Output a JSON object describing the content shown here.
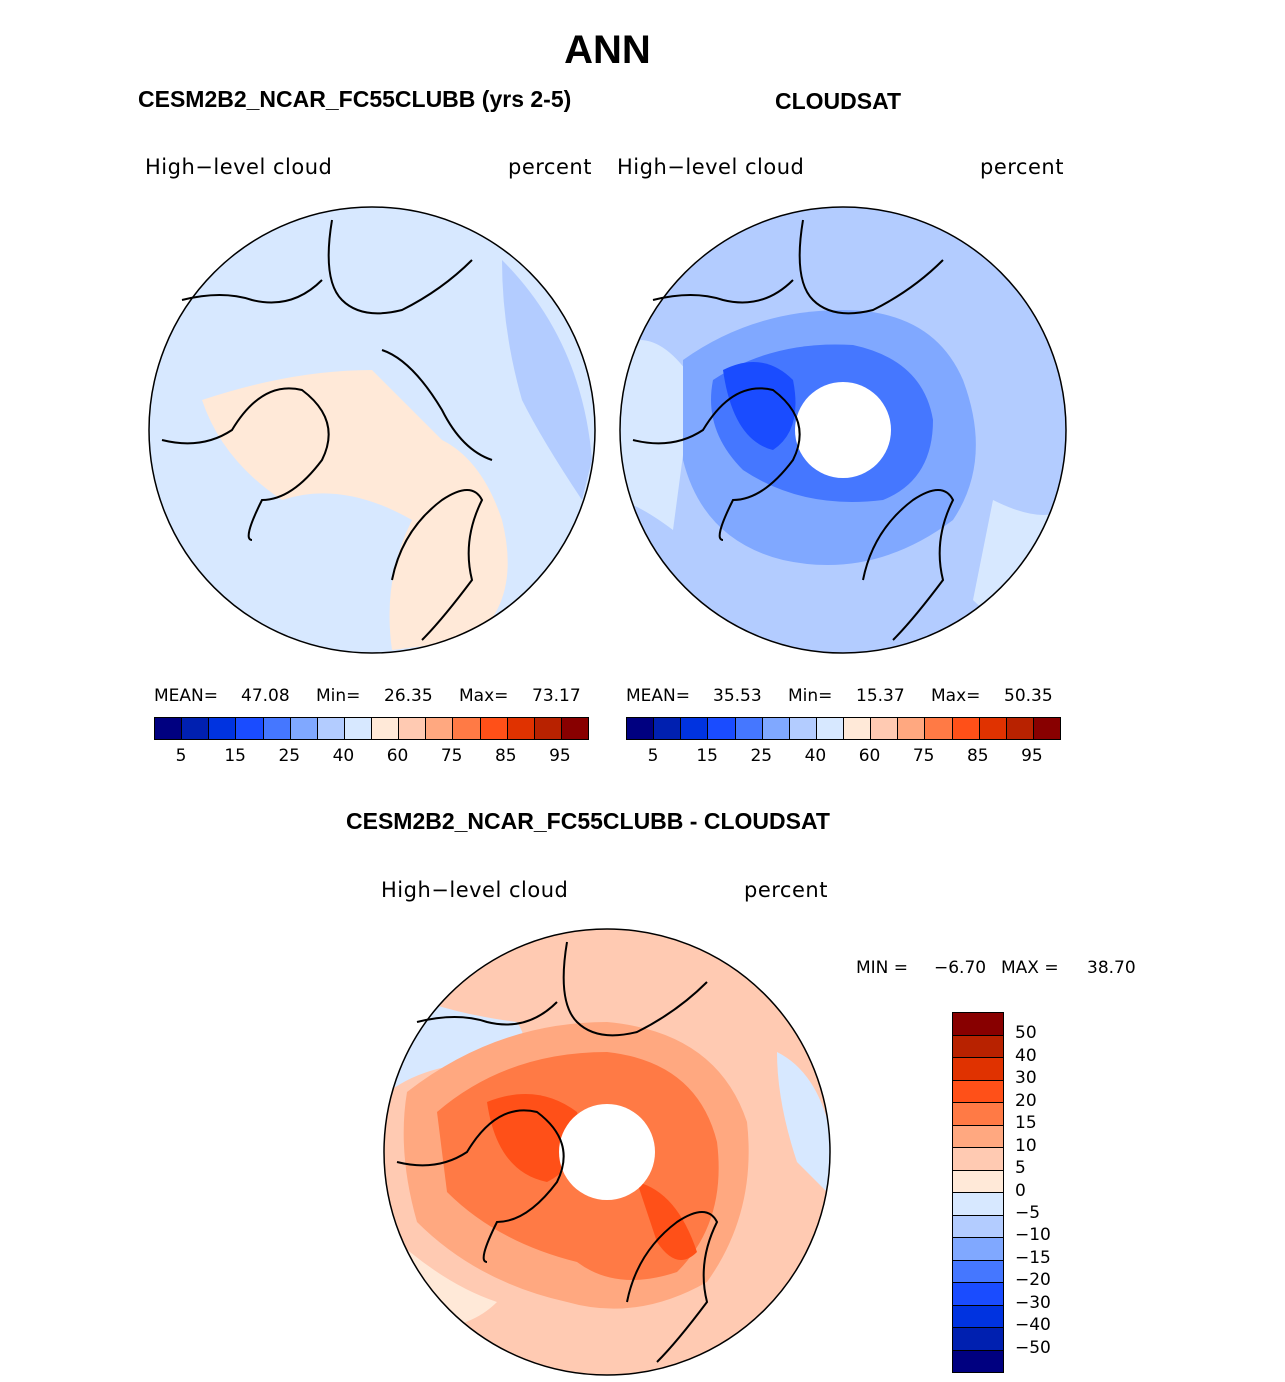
{
  "title": "ANN",
  "panels": [
    {
      "heading": "CESM2B2_NCAR_FC55CLUBB (yrs 2-5)",
      "variable": "High−level cloud",
      "units": "percent",
      "stats": {
        "mean_label": "MEAN=",
        "mean": "47.08",
        "min_label": "Min=",
        "min": "26.35",
        "max_label": "Max=",
        "max": "73.17"
      }
    },
    {
      "heading": "CLOUDSAT",
      "variable": "High−level cloud",
      "units": "percent",
      "stats": {
        "mean_label": "MEAN=",
        "mean": "35.53",
        "min_label": "Min=",
        "min": "15.37",
        "max_label": "Max=",
        "max": "50.35"
      }
    }
  ],
  "abs_colorbar": {
    "colors": [
      "#000080",
      "#0020b0",
      "#0033e0",
      "#1a4cff",
      "#4577ff",
      "#80a8ff",
      "#b3ccff",
      "#d7e8ff",
      "#ffe9d8",
      "#ffcab2",
      "#ffa880",
      "#ff7a45",
      "#ff5018",
      "#e03200",
      "#b82200",
      "#880000"
    ],
    "labels": [
      "5",
      "15",
      "25",
      "40",
      "60",
      "75",
      "85",
      "95"
    ]
  },
  "diff": {
    "heading": "CESM2B2_NCAR_FC55CLUBB - CLOUDSAT",
    "variable": "High−level cloud",
    "units": "percent",
    "min_label": "MIN =",
    "min": "−6.70",
    "max_label": "MAX =",
    "max": "38.70",
    "colors": [
      "#880000",
      "#b82200",
      "#e03200",
      "#ff5018",
      "#ff7a45",
      "#ffa880",
      "#ffcab2",
      "#ffe9d8",
      "#d7e8ff",
      "#b3ccff",
      "#80a8ff",
      "#4577ff",
      "#1a4cff",
      "#0033e0",
      "#0020b0",
      "#000080"
    ],
    "labels": [
      "50",
      "40",
      "30",
      "20",
      "15",
      "10",
      "5",
      "0",
      "−5",
      "−10",
      "−15",
      "−20",
      "−30",
      "−40",
      "−50"
    ]
  }
}
